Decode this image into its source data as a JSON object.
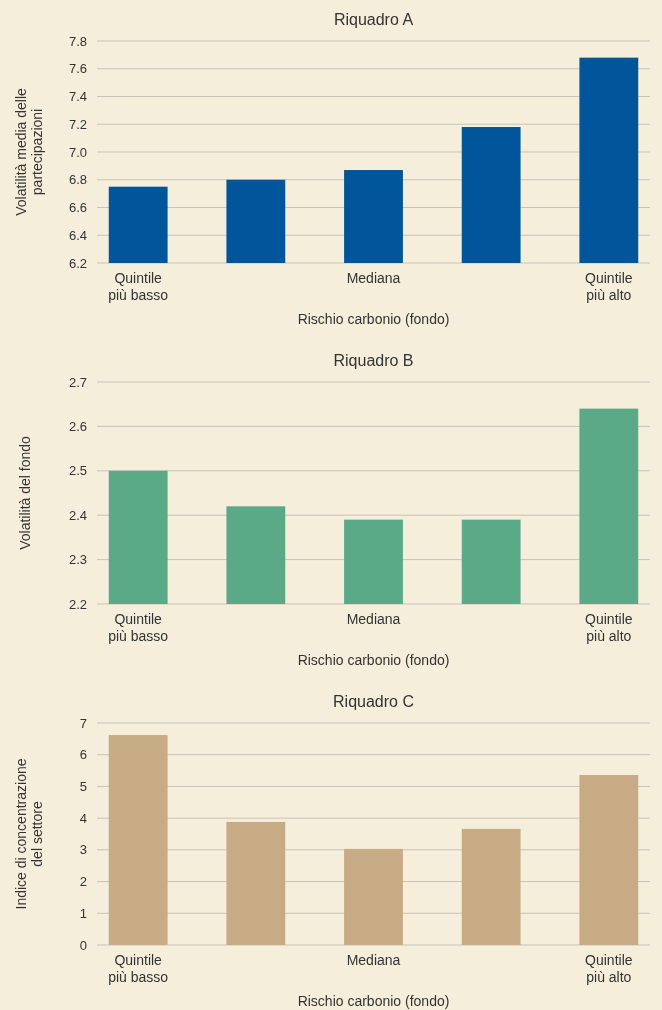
{
  "chart_data": [
    {
      "type": "bar",
      "title": "Riquadro A",
      "xlabel": "Rischio carbonio (fondo)",
      "ylabel": "Volatilità media delle partecipazioni",
      "categories": [
        "Quintile più basso",
        null,
        "Mediana",
        null,
        "Quintile più alto"
      ],
      "values": [
        6.75,
        6.8,
        6.87,
        7.18,
        7.68
      ],
      "color": "#00559b",
      "ylim": [
        6.2,
        7.8
      ],
      "yticks": [
        {
          "value": 6.2,
          "label": "6.2"
        },
        {
          "value": 6.4,
          "label": "6.4"
        },
        {
          "value": 6.6,
          "label": "6.6"
        },
        {
          "value": 6.8,
          "label": "6.8"
        },
        {
          "value": 7.0,
          "label": "7.0"
        },
        {
          "value": 7.2,
          "label": "7.2"
        },
        {
          "value": 7.4,
          "label": "7.4"
        },
        {
          "value": 7.6,
          "label": "7.6"
        },
        {
          "value": 7.8,
          "label": "7.8"
        }
      ],
      "grid": "y"
    },
    {
      "type": "bar",
      "title": "Riquadro B",
      "xlabel": "Rischio carbonio (fondo)",
      "ylabel": "Volatilità del fondo",
      "categories": [
        "Quintile più basso",
        null,
        "Mediana",
        null,
        "Quintile più alto"
      ],
      "values": [
        2.5,
        2.42,
        2.39,
        2.39,
        2.64
      ],
      "color": "#5aaa88",
      "ylim": [
        2.2,
        2.7
      ],
      "yticks": [
        2.2,
        2.3,
        2.4,
        2.5,
        2.6,
        2.7
      ],
      "grid": "y"
    },
    {
      "type": "bar",
      "title": "Riquadro C",
      "xlabel": "Rischio carbonio (fondo)",
      "ylabel": "Indice di concentrazione del settore",
      "categories": [
        "Quintile più basso",
        null,
        "Mediana",
        null,
        "Quintile più alto"
      ],
      "values": [
        6.62,
        3.88,
        3.03,
        3.66,
        5.36
      ],
      "color": "#c6ab85",
      "ylim": [
        0,
        7
      ],
      "yticks": [
        0,
        1,
        2,
        3,
        4,
        5,
        6,
        7
      ],
      "grid": "y"
    }
  ]
}
